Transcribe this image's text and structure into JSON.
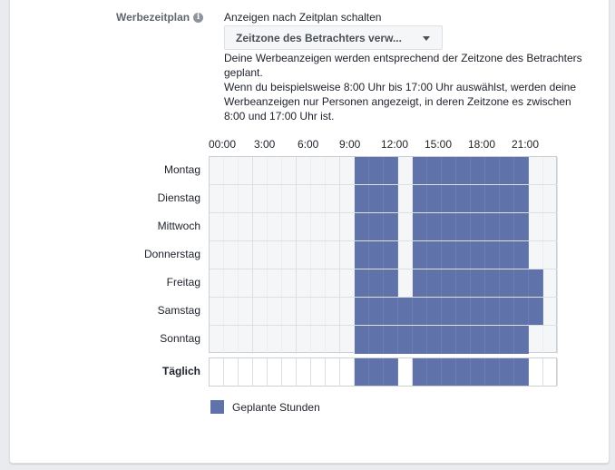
{
  "section": {
    "label": "Werbezeitplan",
    "info_icon": "info-icon",
    "subtitle": "Anzeigen nach Zeitplan schalten",
    "timezone_dropdown": {
      "selected": "Zeitzone des Betrachters verw...",
      "icon": "caret-down-icon"
    },
    "description_line1": "Deine Werbeanzeigen werden entsprechend der Zeitzone des Betrachters geplant.",
    "description_line2": "Wenn du beispielsweise 8:00 Uhr bis 17:00 Uhr auswählst, werden deine Werbeanzeigen nur Personen angezeigt, in deren Zeitzone es zwischen 8:00 und 17:00 Uhr ist."
  },
  "schedule": {
    "hour_labels": [
      "00:00",
      "3:00",
      "6:00",
      "9:00",
      "12:00",
      "15:00",
      "18:00",
      "21:00"
    ],
    "days": [
      {
        "label": "Montag",
        "active_hours": [
          10,
          11,
          12,
          14,
          15,
          16,
          17,
          18,
          19,
          20,
          21
        ]
      },
      {
        "label": "Dienstag",
        "active_hours": [
          10,
          11,
          12,
          14,
          15,
          16,
          17,
          18,
          19,
          20,
          21
        ]
      },
      {
        "label": "Mittwoch",
        "active_hours": [
          10,
          11,
          12,
          14,
          15,
          16,
          17,
          18,
          19,
          20,
          21
        ]
      },
      {
        "label": "Donnerstag",
        "active_hours": [
          10,
          11,
          12,
          14,
          15,
          16,
          17,
          18,
          19,
          20,
          21
        ]
      },
      {
        "label": "Freitag",
        "active_hours": [
          10,
          11,
          12,
          14,
          15,
          16,
          17,
          18,
          19,
          20,
          21,
          22
        ]
      },
      {
        "label": "Samstag",
        "active_hours": [
          10,
          11,
          12,
          13,
          14,
          15,
          16,
          17,
          18,
          19,
          20,
          21,
          22
        ]
      },
      {
        "label": "Sonntag",
        "active_hours": [
          10,
          11,
          12,
          13,
          14,
          15,
          16,
          17,
          18,
          19,
          20,
          21
        ]
      }
    ],
    "daily": {
      "label": "Täglich",
      "active_hours": [
        10,
        11,
        12,
        14,
        15,
        16,
        17,
        18,
        19,
        20,
        21
      ]
    },
    "accent_color": "#5f73aa"
  },
  "legend": {
    "label": "Geplante Stunden",
    "color": "#5f73aa"
  }
}
